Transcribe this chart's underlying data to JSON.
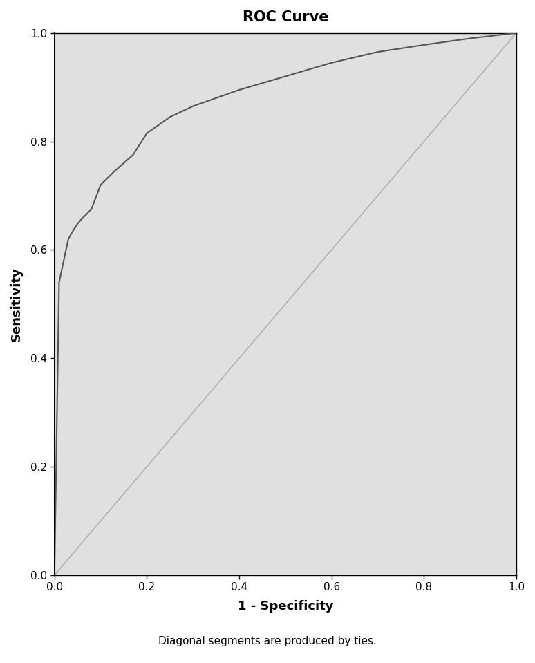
{
  "title": "ROC Curve",
  "xlabel": "1 - Specificity",
  "ylabel": "Sensitivity",
  "footnote": "Diagonal segments are produced by ties.",
  "xlim": [
    0.0,
    1.0
  ],
  "ylim": [
    0.0,
    1.0
  ],
  "xticks": [
    0.0,
    0.2,
    0.4,
    0.6,
    0.8,
    1.0
  ],
  "yticks": [
    0.0,
    0.2,
    0.4,
    0.6,
    0.8,
    1.0
  ],
  "background_color": "#e0e0e0",
  "fig_background": "#ffffff",
  "roc_color": "#555555",
  "diagonal_color": "#b0b0b0",
  "roc_linewidth": 1.5,
  "diagonal_linewidth": 1.2,
  "title_fontsize": 15,
  "label_fontsize": 13,
  "tick_fontsize": 11,
  "footnote_fontsize": 11,
  "roc_x": [
    0.0,
    0.01,
    0.02,
    0.03,
    0.04,
    0.05,
    0.06,
    0.08,
    0.1,
    0.13,
    0.17,
    0.2,
    0.25,
    0.3,
    0.4,
    0.5,
    0.6,
    0.7,
    0.8,
    0.9,
    1.0
  ],
  "roc_y": [
    0.0,
    0.54,
    0.58,
    0.62,
    0.635,
    0.648,
    0.658,
    0.675,
    0.72,
    0.745,
    0.775,
    0.815,
    0.845,
    0.865,
    0.895,
    0.92,
    0.945,
    0.965,
    0.978,
    0.99,
    1.0
  ]
}
